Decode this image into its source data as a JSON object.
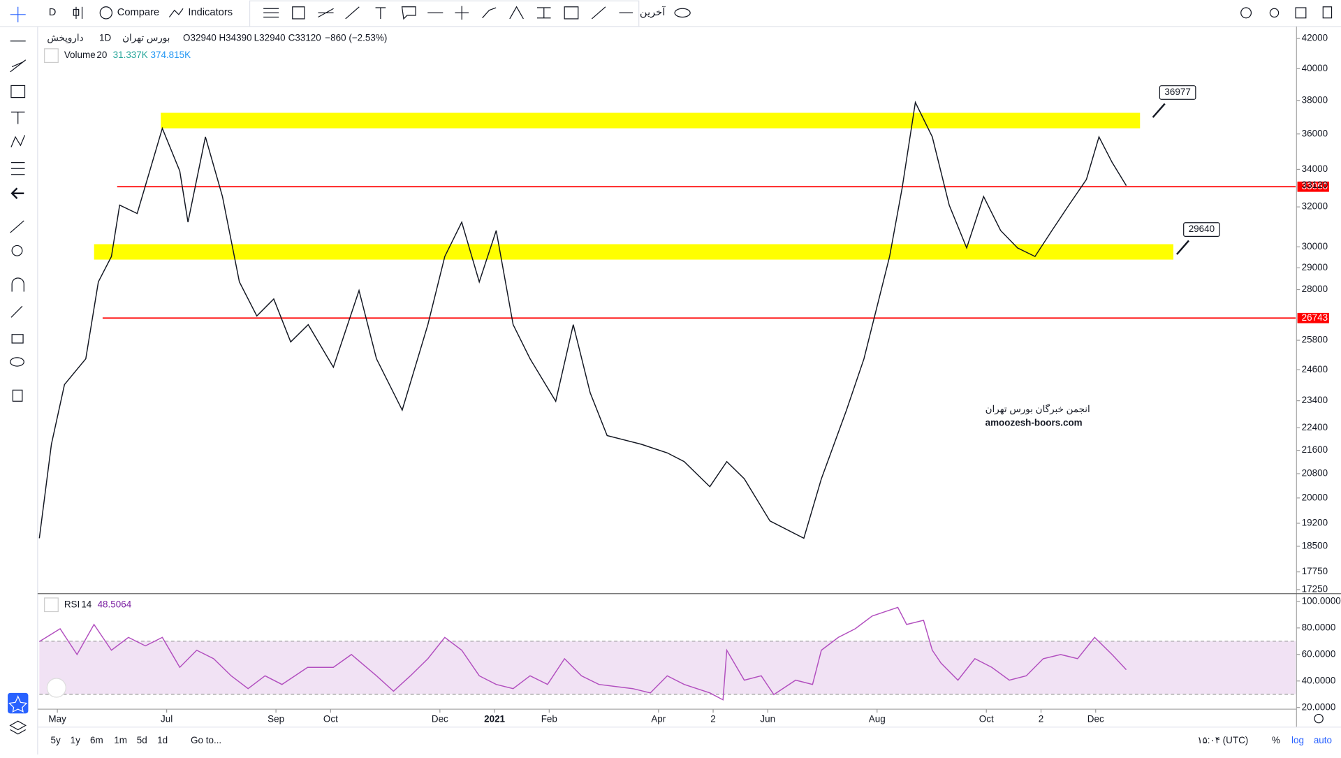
{
  "toolbar": {
    "interval": "D",
    "compare": "Compare",
    "indicators": "Indicators",
    "more": "آخرین"
  },
  "legend": {
    "symbol": "داروپخش",
    "exchange": "بورس تهران",
    "interval": "1D",
    "open": "O32940",
    "high": "H34390",
    "low": "L32940",
    "close": "C33120",
    "change": "−860 (−2.53%)"
  },
  "volume_legend": {
    "name": "Volume",
    "length": "20",
    "value": "31.337K",
    "average": "374.815K"
  },
  "rsi_legend": {
    "name": "RSI",
    "length": "14"
  },
  "watermark": {
    "line1": "انجمن خبرگان بورس تهران",
    "line2": "amoozesh-boors.com"
  },
  "bottom_bar": {
    "ranges": [
      "5y",
      "1y",
      "6m",
      "1m",
      "5d",
      "1d"
    ],
    "goto": "Go to...",
    "time": "۱۵:۰۴ (UTC)",
    "percent": "%",
    "log": "log",
    "auto": "auto"
  },
  "chart_data": [
    {
      "type": "line",
      "log_scale": true,
      "grid": false,
      "x": [
        0.67,
        0.89,
        1.13,
        1.52,
        1.75,
        1.99,
        2.14,
        2.46,
        2.92,
        3.24,
        3.39,
        3.71,
        4.02,
        4.33,
        4.65,
        4.96,
        5.27,
        5.59,
        6.05,
        6.52,
        6.84,
        7.31,
        7.78,
        8.09,
        8.4,
        8.72,
        9.03,
        9.34,
        9.65,
        10.12,
        10.44,
        10.75,
        11.06,
        11.69,
        12.16,
        12.47,
        12.94,
        13.25,
        13.57,
        14.04,
        14.66,
        14.98,
        15.44,
        15.76,
        16.23,
        16.46,
        16.7,
        17.01,
        17.32,
        17.64,
        17.95,
        18.26,
        18.57,
        18.89,
        19.2,
        19.51,
        19.83,
        20.06,
        20.3,
        20.56
      ],
      "series": [
        {
          "color": "#131722",
          "values": [
            18740,
            21810,
            24020,
            25040,
            28350,
            29540,
            32090,
            31660,
            36330,
            33910,
            31220,
            35830,
            32540,
            28350,
            26830,
            27580,
            25730,
            26460,
            24700,
            27960,
            25040,
            23050,
            26460,
            29540,
            31220,
            28350,
            30800,
            26460,
            25040,
            23380,
            26460,
            23700,
            22120,
            21810,
            21510,
            21210,
            20370,
            21210,
            20630,
            19270,
            18740,
            20630,
            23050,
            25040,
            29540,
            33000,
            37880,
            35830,
            32090,
            29950,
            32540,
            30800,
            29950,
            29540,
            30800,
            32090,
            33450,
            35830,
            34390,
            33120
          ]
        }
      ],
      "xlim": [
        0.67,
        23.66
      ],
      "xticks": [
        {
          "value": 1,
          "label": "May"
        },
        {
          "value": 3,
          "label": "Jul"
        },
        {
          "value": 5,
          "label": "Sep"
        },
        {
          "value": 6,
          "label": "Oct"
        },
        {
          "value": 8,
          "label": "Dec"
        },
        {
          "value": 9,
          "label": "2021"
        },
        {
          "value": 10,
          "label": "Feb"
        },
        {
          "value": 12,
          "label": "Apr"
        },
        {
          "value": 13,
          "label": "2"
        },
        {
          "value": 14,
          "label": "Jun"
        },
        {
          "value": 16,
          "label": "Aug"
        },
        {
          "value": 18,
          "label": "Oct"
        },
        {
          "value": 19,
          "label": "2"
        },
        {
          "value": 20,
          "label": "Dec"
        }
      ],
      "ylim": [
        17160,
        42760
      ],
      "yticks": [
        42000,
        40000,
        38000,
        36000,
        34000,
        32000,
        30000,
        29000,
        28000,
        25800,
        24600,
        23400,
        22400,
        21600,
        20800,
        20000,
        19200,
        18500,
        17750,
        17250
      ],
      "last_price": 33120,
      "zones": [
        {
          "from": 36330,
          "to": 37250,
          "color": "#ffff00"
        },
        {
          "from": 29390,
          "to": 30130,
          "color": "#ffff00"
        }
      ],
      "levels": [
        {
          "value": 33060,
          "color": "#ff0000"
        },
        {
          "value": 26743,
          "color": "#ff0000"
        }
      ],
      "callouts": [
        36977,
        29640
      ]
    },
    {
      "type": "line",
      "grid": false,
      "x": [
        0.67,
        1.05,
        1.36,
        1.67,
        1.99,
        2.3,
        2.61,
        2.92,
        3.24,
        3.55,
        3.86,
        4.18,
        4.49,
        4.8,
        5.11,
        5.58,
        6.05,
        6.38,
        6.84,
        7.15,
        7.46,
        7.78,
        8.09,
        8.4,
        8.72,
        9.03,
        9.34,
        9.65,
        9.97,
        10.28,
        10.59,
        10.91,
        11.53,
        11.85,
        12.16,
        12.47,
        12.94,
        13.18,
        13.25,
        13.57,
        13.88,
        14.11,
        14.51,
        14.82,
        14.98,
        15.29,
        15.6,
        15.91,
        16.38,
        16.54,
        16.85,
        17.01,
        17.17,
        17.48,
        17.79,
        18.1,
        18.42,
        18.73,
        19.04,
        19.36,
        19.67,
        19.98,
        20.3,
        20.56
      ],
      "series": [
        {
          "color": "#b24fbf",
          "values": [
            69.7,
            79.4,
            60,
            82.6,
            63.2,
            72.9,
            66.5,
            72.9,
            50.3,
            63.2,
            56.8,
            43.9,
            34.2,
            43.9,
            37.4,
            50.3,
            50.3,
            60,
            43.9,
            32.3,
            43.9,
            56.8,
            72.9,
            63.2,
            43.9,
            37.4,
            34.2,
            43.9,
            37.4,
            56.8,
            43.9,
            37.4,
            34.2,
            31,
            43.9,
            37.4,
            31,
            25.8,
            63.2,
            40.6,
            43.9,
            29.7,
            40.6,
            37.4,
            63.2,
            72.9,
            79.4,
            89,
            95.5,
            82.6,
            85.8,
            63.2,
            53.5,
            40.6,
            56.8,
            50.3,
            40.6,
            43.9,
            56.8,
            60,
            56.8,
            72.9,
            60,
            48.5064
          ]
        }
      ],
      "xlim": [
        0.67,
        23.66
      ],
      "ylim": [
        18.1,
        103.9
      ],
      "yticks": [
        {
          "value": 100,
          "label": "100.0000"
        },
        {
          "value": 80,
          "label": "80.0000"
        },
        {
          "value": 60,
          "label": "60.0000"
        },
        {
          "value": 40,
          "label": "40.0000"
        },
        {
          "value": 20,
          "label": "20.0000"
        }
      ],
      "band": [
        30,
        70
      ],
      "band_color": "#e1bee7"
    }
  ]
}
